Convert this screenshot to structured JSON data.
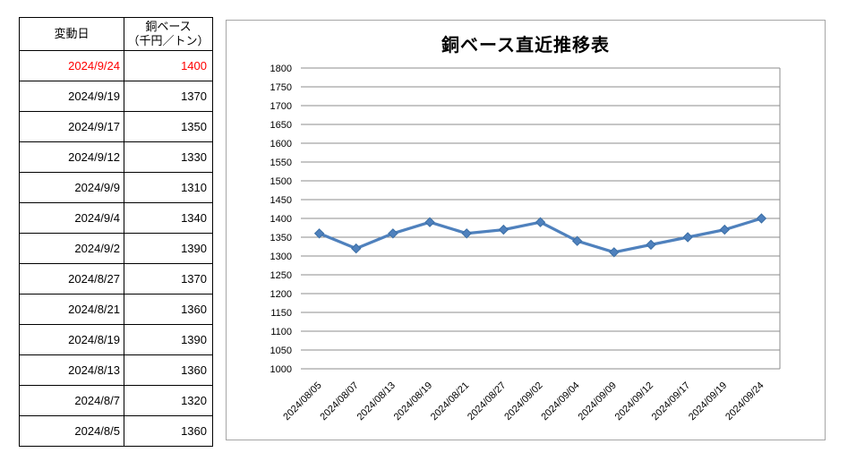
{
  "table": {
    "col_date_header": "変動日",
    "col_value_header_line1": "銅ベース",
    "col_value_header_line2": "（千円／トン）",
    "highlight_color": "#FF0000",
    "rows": [
      {
        "date": "2024/9/24",
        "value": "1400",
        "highlight": true
      },
      {
        "date": "2024/9/19",
        "value": "1370",
        "highlight": false
      },
      {
        "date": "2024/9/17",
        "value": "1350",
        "highlight": false
      },
      {
        "date": "2024/9/12",
        "value": "1330",
        "highlight": false
      },
      {
        "date": "2024/9/9",
        "value": "1310",
        "highlight": false
      },
      {
        "date": "2024/9/4",
        "value": "1340",
        "highlight": false
      },
      {
        "date": "2024/9/2",
        "value": "1390",
        "highlight": false
      },
      {
        "date": "2024/8/27",
        "value": "1370",
        "highlight": false
      },
      {
        "date": "2024/8/21",
        "value": "1360",
        "highlight": false
      },
      {
        "date": "2024/8/19",
        "value": "1390",
        "highlight": false
      },
      {
        "date": "2024/8/13",
        "value": "1360",
        "highlight": false
      },
      {
        "date": "2024/8/7",
        "value": "1320",
        "highlight": false
      },
      {
        "date": "2024/8/5",
        "value": "1360",
        "highlight": false
      }
    ]
  },
  "chart_data": {
    "type": "line",
    "title": "銅ベース直近推移表",
    "categories": [
      "2024/08/05",
      "2024/08/07",
      "2024/08/13",
      "2024/08/19",
      "2024/08/21",
      "2024/08/27",
      "2024/09/02",
      "2024/09/04",
      "2024/09/09",
      "2024/09/12",
      "2024/09/17",
      "2024/09/19",
      "2024/09/24"
    ],
    "values": [
      1360,
      1320,
      1360,
      1390,
      1360,
      1370,
      1390,
      1340,
      1310,
      1330,
      1350,
      1370,
      1400
    ],
    "xlabel": "",
    "ylabel": "",
    "ylim": [
      1000,
      1800
    ],
    "ytick_step": 50,
    "grid": true,
    "legend_position": "none",
    "marker": "diamond",
    "line_color": "#4F81BD",
    "marker_edge_color": "#3A6EA5",
    "gridline_color": "#8E8E8E",
    "border_color": "#A6A6A6",
    "tick_font_size": 11
  }
}
